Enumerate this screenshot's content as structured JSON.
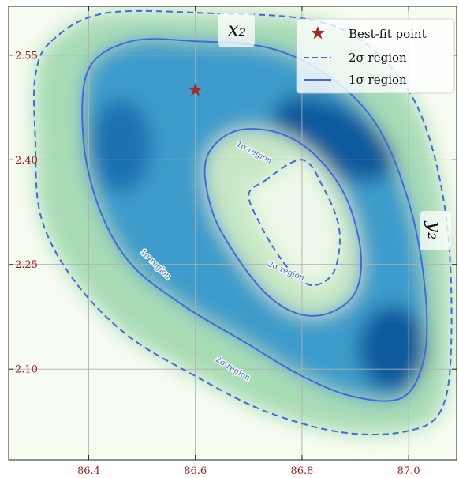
{
  "chart_data": {
    "type": "heatmap",
    "title": "",
    "xlabel": "",
    "ylabel": "",
    "xlim": [
      86.25,
      87.09
    ],
    "ylim": [
      1.97,
      2.62
    ],
    "xticks": [
      86.4,
      86.6,
      86.8,
      87.0
    ],
    "yticks": [
      2.1,
      2.25,
      2.4,
      2.55
    ],
    "xtick_labels": [
      "86.4",
      "86.6",
      "86.8",
      "87.0"
    ],
    "ytick_labels": [
      "2.10",
      "2.25",
      "2.40",
      "2.55"
    ],
    "tick_color": "#9b1c1c",
    "grid": true,
    "colormap": "GnBu",
    "legend_position": "top-right",
    "best_fit_point": {
      "x": 86.6,
      "y": 2.5
    },
    "best_fit_color": "#a52a2a",
    "contour_color": "#4169e1",
    "contours": [
      {
        "name": "2σ region",
        "style": "dashed",
        "rings": [
          [
            [
              86.33,
              2.57
            ],
            [
              86.43,
              2.61
            ],
            [
              86.63,
              2.61
            ],
            [
              86.82,
              2.6
            ],
            [
              86.93,
              2.56
            ],
            [
              87.02,
              2.47
            ],
            [
              87.07,
              2.32
            ],
            [
              87.08,
              2.14
            ],
            [
              87.06,
              2.04
            ],
            [
              86.99,
              2.01
            ],
            [
              86.87,
              2.01
            ],
            [
              86.73,
              2.04
            ],
            [
              86.6,
              2.09
            ],
            [
              86.47,
              2.15
            ],
            [
              86.37,
              2.23
            ],
            [
              86.31,
              2.32
            ],
            [
              86.3,
              2.43
            ],
            [
              86.3,
              2.52
            ]
          ],
          [
            [
              86.73,
              2.37
            ],
            [
              86.8,
              2.4
            ],
            [
              86.84,
              2.36
            ],
            [
              86.87,
              2.3
            ],
            [
              86.86,
              2.24
            ],
            [
              86.82,
              2.22
            ],
            [
              86.78,
              2.24
            ],
            [
              86.75,
              2.27
            ],
            [
              86.72,
              2.31
            ],
            [
              86.7,
              2.35
            ]
          ]
        ]
      },
      {
        "name": "1σ region",
        "style": "solid",
        "rings": [
          [
            [
              86.4,
              2.53
            ],
            [
              86.48,
              2.57
            ],
            [
              86.6,
              2.57
            ],
            [
              86.74,
              2.56
            ],
            [
              86.85,
              2.52
            ],
            [
              86.94,
              2.45
            ],
            [
              87.0,
              2.34
            ],
            [
              87.03,
              2.22
            ],
            [
              87.03,
              2.12
            ],
            [
              86.99,
              2.06
            ],
            [
              86.9,
              2.06
            ],
            [
              86.8,
              2.09
            ],
            [
              86.69,
              2.14
            ],
            [
              86.58,
              2.19
            ],
            [
              86.48,
              2.25
            ],
            [
              86.42,
              2.33
            ],
            [
              86.39,
              2.43
            ]
          ],
          [
            [
              86.62,
              2.4
            ],
            [
              86.67,
              2.44
            ],
            [
              86.75,
              2.44
            ],
            [
              86.82,
              2.41
            ],
            [
              86.88,
              2.35
            ],
            [
              86.91,
              2.27
            ],
            [
              86.9,
              2.21
            ],
            [
              86.85,
              2.18
            ],
            [
              86.79,
              2.18
            ],
            [
              86.73,
              2.21
            ],
            [
              86.67,
              2.27
            ],
            [
              86.63,
              2.33
            ]
          ]
        ]
      }
    ],
    "contour_labels": [
      {
        "text": "1σ region",
        "x": 86.71,
        "y": 2.41,
        "angle": 28
      },
      {
        "text": "1σ region",
        "x": 86.525,
        "y": 2.25,
        "angle": 44
      },
      {
        "text": "2σ region",
        "x": 86.77,
        "y": 2.24,
        "angle": 22
      },
      {
        "text": "2σ region",
        "x": 86.67,
        "y": 2.1,
        "angle": 31
      }
    ],
    "annotations": [
      {
        "text": "x₂",
        "position": "top-center"
      },
      {
        "text": "y₂",
        "position": "right-middle"
      }
    ],
    "legend": [
      {
        "label": "Best-fit point",
        "marker": "star"
      },
      {
        "label": "2σ region",
        "marker": "dashed-line"
      },
      {
        "label": "1σ region",
        "marker": "solid-line"
      }
    ]
  }
}
